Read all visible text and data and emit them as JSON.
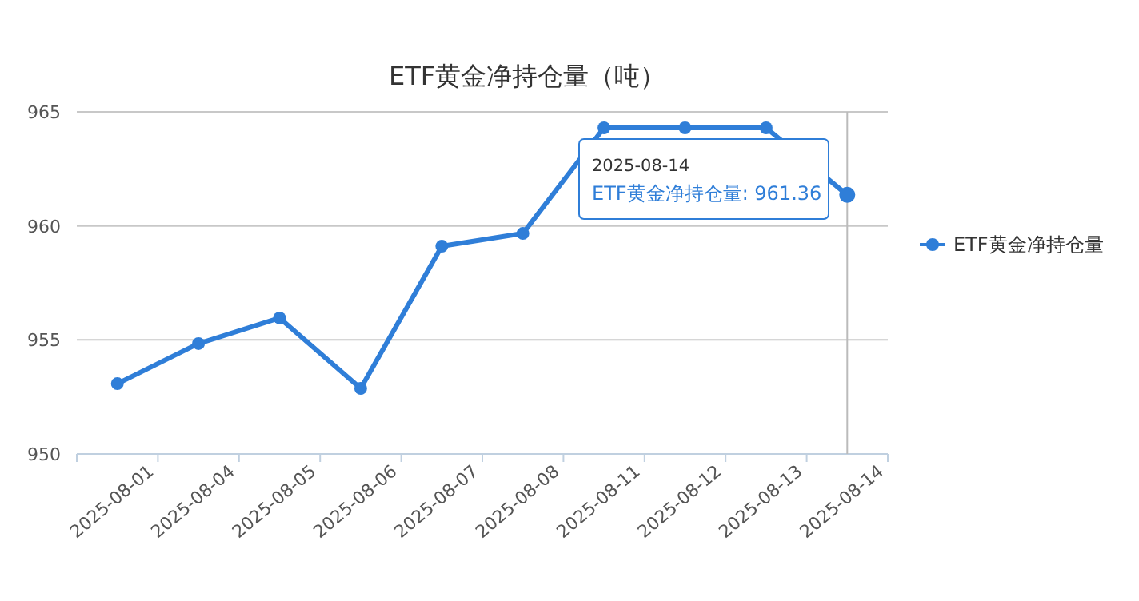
{
  "chart_data": {
    "type": "line",
    "title": "ETF黄金净持仓量（吨）",
    "categories": [
      "2025-08-01",
      "2025-08-04",
      "2025-08-05",
      "2025-08-06",
      "2025-08-07",
      "2025-08-08",
      "2025-08-11",
      "2025-08-12",
      "2025-08-13",
      "2025-08-14"
    ],
    "series": [
      {
        "name": "ETF黄金净持仓量",
        "color": "#2f7ed8",
        "values": [
          953.08,
          954.84,
          955.96,
          952.87,
          959.11,
          959.67,
          964.3,
          964.3,
          964.3,
          961.36
        ]
      }
    ],
    "ylim": [
      950,
      965
    ],
    "yticks": [
      950,
      955,
      960,
      965
    ],
    "grid": "y",
    "legend": "right",
    "marker": "circle",
    "ref_lines": [
      {
        "axis": "x",
        "value": "2025-08-14",
        "color": "#bbbbbb"
      }
    ],
    "annotations": [
      "2025-08-14",
      "ETF黄金净持仓量: 961.36"
    ]
  }
}
